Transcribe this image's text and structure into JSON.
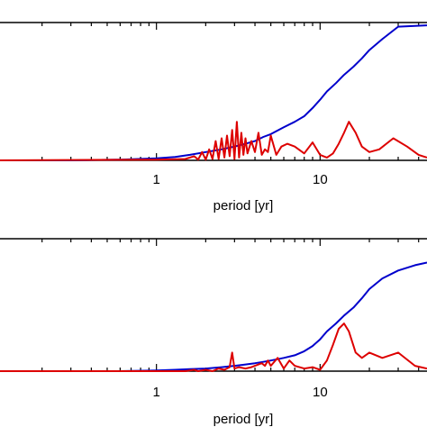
{
  "chart_data": [
    {
      "type": "line",
      "xlabel": "period [yr]",
      "xscale": "log",
      "xlim": [
        0.1,
        45
      ],
      "ylim": [
        0,
        1
      ],
      "xticks": [
        1,
        10
      ],
      "xtick_labels": [
        "1",
        "10"
      ],
      "grid": false,
      "series": [
        {
          "color": "#0000cc",
          "x": [
            0.1,
            0.3,
            0.6,
            1.0,
            1.3,
            1.6,
            2.0,
            2.5,
            3.0,
            3.5,
            4.0,
            4.5,
            5.0,
            6.0,
            7.0,
            8.0,
            9.0,
            10.0,
            11.0,
            12.5,
            14.0,
            16.0,
            18.0,
            20.0,
            24.0,
            30.0,
            38.0,
            45.0
          ],
          "y": [
            0.0,
            0.0,
            0.005,
            0.015,
            0.025,
            0.04,
            0.06,
            0.08,
            0.1,
            0.12,
            0.14,
            0.17,
            0.19,
            0.24,
            0.28,
            0.32,
            0.38,
            0.44,
            0.5,
            0.56,
            0.62,
            0.68,
            0.74,
            0.8,
            0.88,
            0.97,
            0.975,
            0.98
          ]
        },
        {
          "color": "#dd0000",
          "x": [
            0.1,
            1.0,
            1.5,
            1.7,
            1.8,
            1.9,
            2.0,
            2.1,
            2.2,
            2.3,
            2.4,
            2.5,
            2.6,
            2.7,
            2.8,
            2.9,
            3.0,
            3.1,
            3.2,
            3.3,
            3.4,
            3.5,
            3.6,
            3.8,
            4.0,
            4.2,
            4.4,
            4.6,
            4.8,
            5.0,
            5.4,
            5.8,
            6.3,
            7.0,
            8.0,
            9.0,
            10.0,
            11.0,
            12.0,
            13.0,
            14.0,
            15.0,
            16.5,
            18.0,
            20.0,
            23.0,
            28.0,
            34.0,
            40.0,
            45.0
          ],
          "y": [
            0.0,
            0.005,
            0.01,
            0.03,
            0.005,
            0.06,
            0.005,
            0.08,
            0.01,
            0.14,
            0.01,
            0.16,
            0.02,
            0.18,
            0.03,
            0.22,
            0.01,
            0.28,
            0.02,
            0.2,
            0.04,
            0.16,
            0.05,
            0.14,
            0.06,
            0.2,
            0.04,
            0.08,
            0.06,
            0.18,
            0.04,
            0.1,
            0.12,
            0.1,
            0.05,
            0.13,
            0.04,
            0.02,
            0.05,
            0.12,
            0.2,
            0.28,
            0.2,
            0.1,
            0.06,
            0.08,
            0.16,
            0.1,
            0.04,
            0.02
          ]
        }
      ]
    },
    {
      "type": "line",
      "xlabel": "period [yr]",
      "xscale": "log",
      "xlim": [
        0.1,
        45
      ],
      "ylim": [
        0,
        1
      ],
      "xticks": [
        1,
        10
      ],
      "xtick_labels": [
        "1",
        "10"
      ],
      "grid": false,
      "series": [
        {
          "color": "#0000cc",
          "x": [
            0.1,
            0.3,
            0.6,
            1.0,
            1.3,
            1.6,
            2.0,
            2.5,
            3.0,
            3.5,
            4.0,
            4.5,
            5.0,
            6.0,
            7.0,
            8.0,
            9.0,
            10.0,
            11.0,
            12.5,
            14.0,
            16.0,
            18.0,
            20.0,
            24.0,
            30.0,
            38.0,
            45.0
          ],
          "y": [
            0.0,
            0.0,
            0.0,
            0.005,
            0.01,
            0.015,
            0.02,
            0.03,
            0.04,
            0.05,
            0.06,
            0.07,
            0.08,
            0.1,
            0.12,
            0.15,
            0.19,
            0.24,
            0.3,
            0.36,
            0.42,
            0.48,
            0.55,
            0.62,
            0.7,
            0.76,
            0.8,
            0.82
          ]
        },
        {
          "color": "#dd0000",
          "x": [
            0.1,
            1.0,
            1.5,
            1.7,
            1.8,
            2.0,
            2.2,
            2.4,
            2.6,
            2.8,
            2.9,
            3.0,
            3.2,
            3.5,
            3.8,
            4.0,
            4.2,
            4.4,
            4.6,
            4.8,
            5.0,
            5.5,
            6.0,
            6.5,
            7.0,
            8.0,
            9.0,
            10.0,
            11.0,
            12.0,
            13.0,
            14.0,
            15.0,
            16.5,
            18.0,
            20.0,
            24.0,
            30.0,
            38.0,
            45.0
          ],
          "y": [
            0.0,
            0.0,
            0.0,
            0.01,
            0.0,
            0.01,
            0.0,
            0.02,
            0.01,
            0.03,
            0.14,
            0.02,
            0.03,
            0.02,
            0.03,
            0.04,
            0.05,
            0.06,
            0.04,
            0.08,
            0.04,
            0.1,
            0.02,
            0.08,
            0.04,
            0.02,
            0.03,
            0.01,
            0.08,
            0.2,
            0.32,
            0.36,
            0.3,
            0.14,
            0.1,
            0.14,
            0.1,
            0.14,
            0.04,
            0.02
          ]
        }
      ]
    }
  ]
}
